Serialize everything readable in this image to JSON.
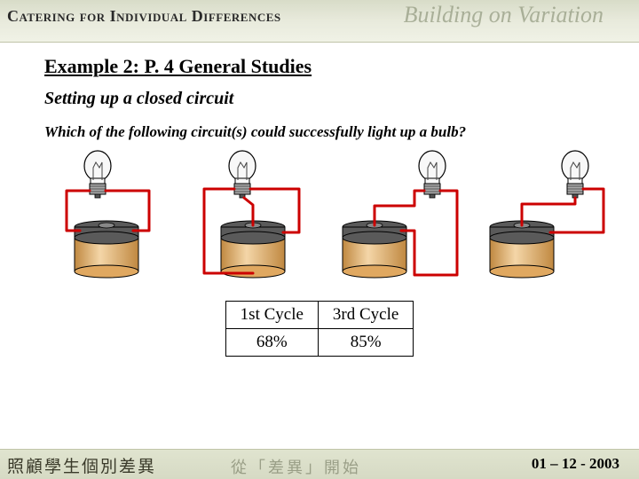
{
  "header": {
    "smallcaps": "Catering for Individual Differences",
    "swoosh": "Building on Variation"
  },
  "title": "Example 2: P. 4 General Studies",
  "subtitle": "Setting up a closed circuit",
  "question": "Which of the following circuit(s) could successfully light up a bulb?",
  "circuits": {
    "colors": {
      "wire": "#cc0000",
      "battery_top": "#5a5a5a",
      "battery_body": "#e0a860",
      "battery_body_dark": "#c08840",
      "battery_cap": "#888888",
      "bulb_glass": "#f8f8f8",
      "bulb_base": "#a8a8a8",
      "filament": "#444444",
      "outline": "#000000"
    }
  },
  "table": {
    "headers": [
      "1st Cycle",
      "3rd Cycle"
    ],
    "values": [
      "68%",
      "85%"
    ]
  },
  "footer": {
    "left": "照顧學生個別差異",
    "mid": "從「差異」開始",
    "right": "01 – 12 - 2003"
  }
}
